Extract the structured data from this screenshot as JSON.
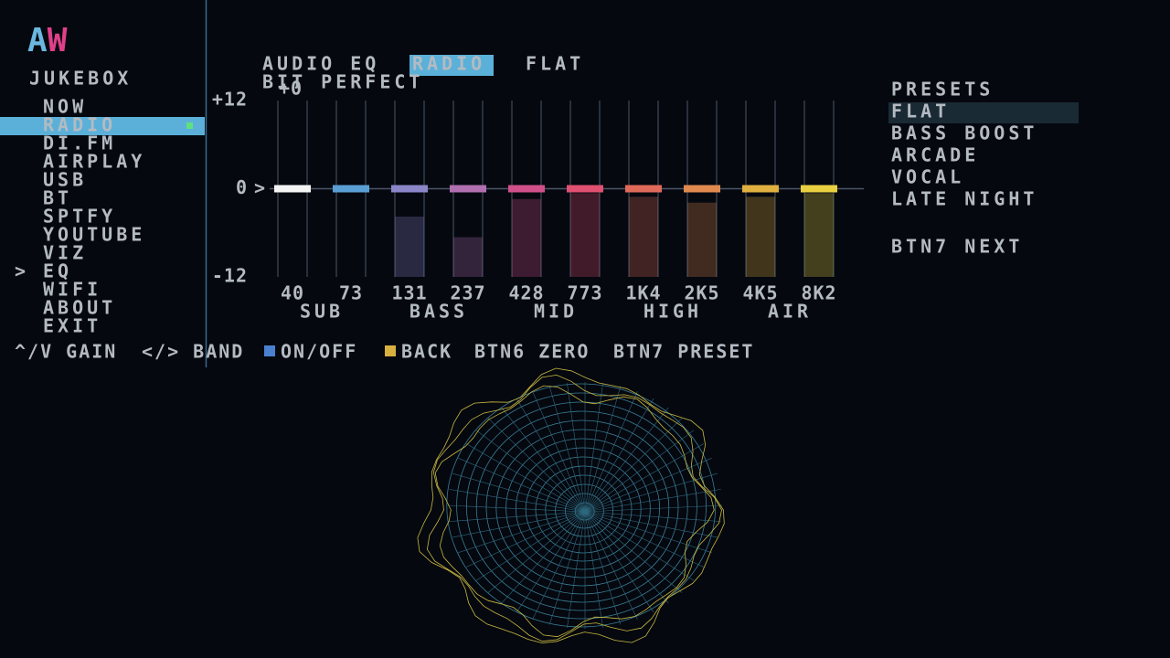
{
  "logo": [
    "A",
    "W"
  ],
  "sidebar": {
    "title": "JUKEBOX",
    "items": [
      "NOW",
      "RADIO",
      "DI.FM",
      "AIRPLAY",
      "USB",
      "BT",
      "SPTFY",
      "YOUTUBE",
      "VIZ",
      "EQ",
      "WIFI",
      "ABOUT",
      "EXIT"
    ]
  },
  "header": {
    "title": "AUDIO EQ",
    "source": "RADIO",
    "preset": "FLAT",
    "mode": "BIT PERFECT"
  },
  "eq": {
    "gain_label": "+0",
    "ylim": [
      -12,
      12
    ],
    "yticks": [
      {
        "value": 12,
        "label": "+12"
      },
      0,
      -12
    ],
    "bands": [
      "40",
      "73",
      "131",
      "237",
      "428",
      "773",
      "1K4",
      "2K5",
      "4K5",
      "8K2"
    ],
    "gains": [
      0,
      0,
      0,
      0,
      0,
      0,
      0,
      0,
      0,
      0
    ],
    "levels": [
      -12,
      -12,
      -3.8,
      -6.6,
      -1.4,
      -0.6,
      -1.1,
      -1.9,
      -1.1,
      -0.6
    ],
    "colors": [
      "#f4f4f4",
      "#5a9fd4",
      "#8a86c8",
      "#b070b0",
      "#d0508a",
      "#e05070",
      "#e06a5a",
      "#e08a50",
      "#e0b040",
      "#e8d040"
    ],
    "groups": [
      "SUB",
      "BASS",
      "MID",
      "HIGH",
      "AIR"
    ]
  },
  "presets": {
    "title": "PRESETS",
    "items": [
      "FLAT",
      "BASS BOOST",
      "ARCADE",
      "VOCAL",
      "LATE NIGHT"
    ],
    "hint": "BTN7 NEXT"
  },
  "footer": [
    "^/V GAIN",
    "</> BAND",
    "ON/OFF",
    "BACK",
    "BTN6 ZERO",
    "BTN7 PRESET"
  ]
}
